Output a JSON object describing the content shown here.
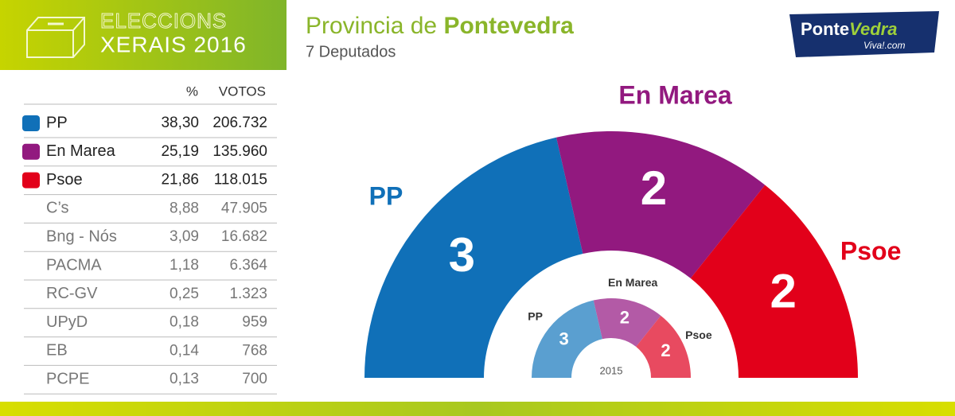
{
  "header": {
    "badge_line1": "ELECCIONS",
    "badge_line2": "XERAIS 2016",
    "title_prefix": "Provincia de ",
    "title_bold": "Pontevedra",
    "subtitle": "7 Deputados",
    "logo_a": "Ponte",
    "logo_b": "Vedra",
    "logo_c": "Viva!.com"
  },
  "table": {
    "columns": [
      "%",
      "VOTOS"
    ],
    "rows": [
      {
        "name": "PP",
        "pct": "38,30",
        "votes": "206.732",
        "color": "#1070b8"
      },
      {
        "name": "En Marea",
        "pct": "25,19",
        "votes": "135.960",
        "color": "#92197f"
      },
      {
        "name": "Psoe",
        "pct": "21,86",
        "votes": "118.015",
        "color": "#e2001a"
      },
      {
        "name": "C’s",
        "pct": "8,88",
        "votes": "47.905"
      },
      {
        "name": "Bng - Nós",
        "pct": "3,09",
        "votes": "16.682"
      },
      {
        "name": "PACMA",
        "pct": "1,18",
        "votes": "6.364"
      },
      {
        "name": "RC-GV",
        "pct": "0,25",
        "votes": "1.323"
      },
      {
        "name": "UPyD",
        "pct": "0,18",
        "votes": "959"
      },
      {
        "name": "EB",
        "pct": "0,14",
        "votes": "768"
      },
      {
        "name": "PCPE",
        "pct": "0,13",
        "votes": "700"
      }
    ]
  },
  "chart_data": [
    {
      "type": "hemicycle",
      "categories": [
        "PP",
        "En Marea",
        "Psoe"
      ],
      "values": [
        3,
        2,
        2
      ],
      "colors": [
        "#1070b8",
        "#92197f",
        "#e2001a"
      ]
    },
    {
      "type": "hemicycle",
      "title": "2015",
      "categories": [
        "PP",
        "En Marea",
        "Psoe"
      ],
      "values": [
        3,
        2,
        2
      ],
      "colors": [
        "#5a9fd0",
        "#b35aa6",
        "#e84a60"
      ]
    }
  ]
}
